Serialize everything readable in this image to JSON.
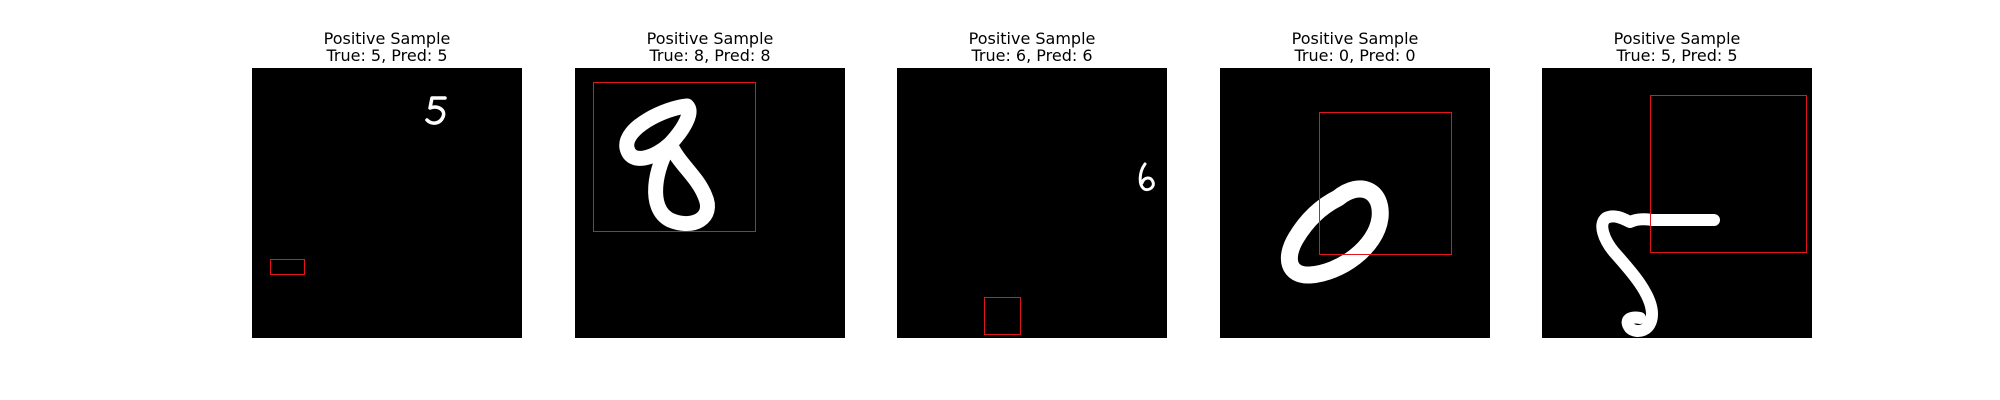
{
  "figure": {
    "panels": [
      {
        "title": "Positive Sample",
        "subtitle": "True: 5, Pred: 5",
        "digit": "5"
      },
      {
        "title": "Positive Sample",
        "subtitle": "True: 8, Pred: 8",
        "digit": "8"
      },
      {
        "title": "Positive Sample",
        "subtitle": "True: 6, Pred: 6",
        "digit": "6"
      },
      {
        "title": "Positive Sample",
        "subtitle": "True: 0, Pred: 0",
        "digit": "0"
      },
      {
        "title": "Positive Sample",
        "subtitle": "True: 5, Pred: 5",
        "digit": "5"
      }
    ],
    "colors": {
      "image_background": "#000000",
      "digit_stroke": "#ffffff",
      "box_stroke": "#e0161a"
    }
  }
}
